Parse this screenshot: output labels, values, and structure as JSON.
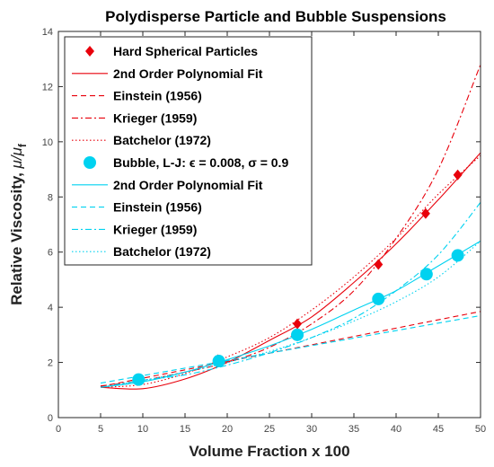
{
  "colors": {
    "red": "#e8000b",
    "cyan": "#00d2f0",
    "axis": "#262626"
  },
  "chart_data": {
    "type": "scatter",
    "title": "Polydisperse Particle and Bubble Suspensions",
    "xlabel": "Volume Fraction x 100",
    "ylabel_main": "Relative Viscosity, ",
    "ylabel_mu": "μ/μ",
    "ylabel_sub": "f",
    "xlim": [
      0,
      50
    ],
    "ylim": [
      0,
      14
    ],
    "xticks": [
      0,
      5,
      10,
      15,
      20,
      25,
      30,
      35,
      40,
      45,
      50
    ],
    "yticks": [
      0,
      2,
      4,
      6,
      8,
      10,
      12,
      14
    ],
    "grid": false,
    "legend_position": "top-left",
    "series": [
      {
        "name": "Hard Spherical Particles",
        "kind": "markers",
        "marker": "diamond",
        "color": "#e8000b",
        "x": [
          18.9,
          28.3,
          37.9,
          43.5,
          47.3
        ],
        "y": [
          2.1,
          3.4,
          5.55,
          7.4,
          8.8
        ]
      },
      {
        "name": "2nd Order Polynomial Fit",
        "kind": "line",
        "dash": "solid",
        "color": "#e8000b",
        "x": [
          5,
          10,
          15,
          20,
          25,
          30,
          35,
          40,
          45,
          50
        ],
        "y": [
          1.1,
          1.05,
          1.4,
          2.0,
          2.8,
          3.65,
          4.9,
          6.3,
          7.9,
          9.6
        ]
      },
      {
        "name": "Einstein (1956)",
        "kind": "line",
        "dash": "dashed",
        "color": "#e8000b",
        "x": [
          5,
          50
        ],
        "y": [
          1.125,
          3.85
        ]
      },
      {
        "name": "Krieger (1959)",
        "kind": "line",
        "dash": "dashdot",
        "color": "#e8000b",
        "x": [
          5,
          10,
          15,
          20,
          25,
          30,
          35,
          40,
          45,
          50
        ],
        "y": [
          1.15,
          1.35,
          1.65,
          2.0,
          2.55,
          3.4,
          4.6,
          6.5,
          9.0,
          12.8
        ]
      },
      {
        "name": "Batchelor (1972)",
        "kind": "line",
        "dash": "dotted",
        "color": "#e8000b",
        "x": [
          5,
          10,
          15,
          20,
          25,
          30,
          35,
          40,
          45,
          50
        ],
        "y": [
          1.1,
          1.2,
          1.6,
          2.2,
          2.9,
          3.9,
          5.1,
          6.5,
          8.1,
          9.5
        ]
      },
      {
        "name": "Bubble, L-J: ϵ = 0.008, σ = 0.9",
        "kind": "markers",
        "marker": "circle",
        "color": "#00d2f0",
        "x": [
          9.5,
          19.0,
          28.3,
          37.9,
          43.6,
          47.3
        ],
        "y": [
          1.38,
          2.05,
          3.0,
          4.3,
          5.2,
          5.88
        ]
      },
      {
        "name": "2nd Order Polynomial Fit",
        "kind": "line",
        "dash": "solid",
        "color": "#00d2f0",
        "x": [
          5,
          10,
          15,
          20,
          25,
          30,
          35,
          40,
          45,
          50
        ],
        "y": [
          1.1,
          1.3,
          1.65,
          2.1,
          2.6,
          3.2,
          3.9,
          4.6,
          5.5,
          6.4
        ]
      },
      {
        "name": "Einstein (1956)",
        "kind": "line",
        "dash": "dashed",
        "color": "#00d2f0",
        "x": [
          5,
          50
        ],
        "y": [
          1.25,
          3.7
        ]
      },
      {
        "name": "Krieger (1959)",
        "kind": "line",
        "dash": "dashdot",
        "color": "#00d2f0",
        "x": [
          5,
          10,
          15,
          20,
          25,
          30,
          35,
          40,
          45,
          50
        ],
        "y": [
          1.1,
          1.35,
          1.55,
          1.9,
          2.35,
          2.9,
          3.6,
          4.6,
          5.9,
          7.8
        ]
      },
      {
        "name": "Batchelor (1972)",
        "kind": "line",
        "dash": "dotted",
        "color": "#00d2f0",
        "x": [
          5,
          10,
          15,
          20,
          25,
          30,
          35,
          40,
          45,
          50
        ],
        "y": [
          1.1,
          1.35,
          1.65,
          2.0,
          2.4,
          2.9,
          3.5,
          4.2,
          5.1,
          6.4
        ]
      }
    ]
  }
}
